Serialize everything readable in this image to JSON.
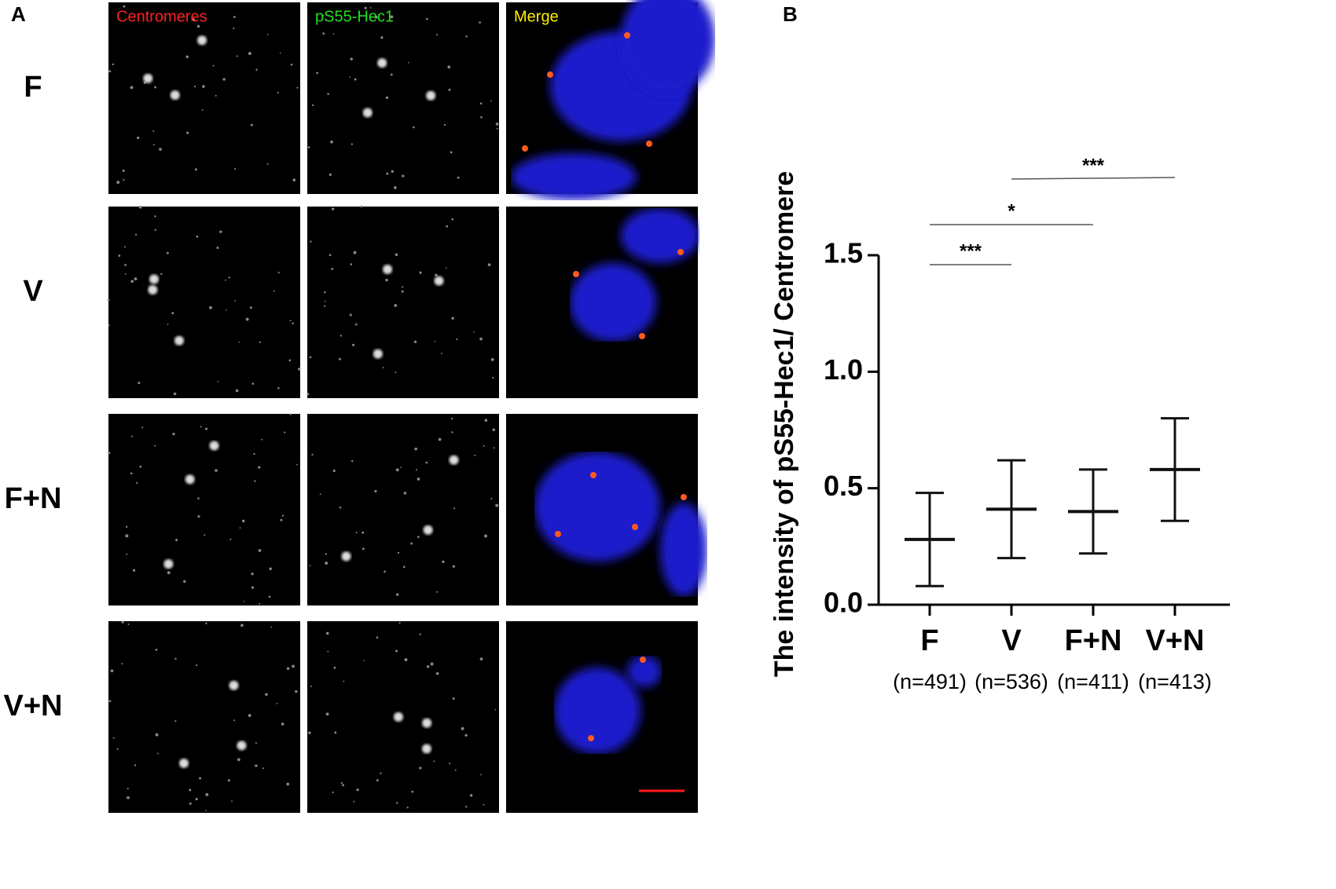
{
  "panel_a": {
    "label": "A",
    "columns": [
      {
        "text": "Centromeres",
        "color": "#ff2020"
      },
      {
        "text": "pS55-Hec1",
        "color": "#22dd22"
      },
      {
        "text": "Merge",
        "color": "#ffee00"
      }
    ],
    "rows": [
      "F",
      "V",
      "F+N",
      "V+N"
    ]
  },
  "chart_data": {
    "type": "mean_sd",
    "panel_label": "B",
    "ylabel": "The intensity of pS55-Hec1/ Centromere",
    "categories": [
      "F",
      "V",
      "F+N",
      "V+N"
    ],
    "n_labels": [
      "(n=491)",
      "(n=536)",
      "(n=411)",
      "(n=413)"
    ],
    "values": [
      0.28,
      0.41,
      0.4,
      0.58
    ],
    "errors": [
      0.2,
      0.21,
      0.18,
      0.22
    ],
    "color": "#111111",
    "ylim": [
      0,
      1.5
    ],
    "yticks": [
      {
        "value": 0,
        "label": "0.0"
      },
      0.5,
      {
        "value": 1,
        "label": "1.0"
      },
      1.5
    ],
    "comparisons": [
      {
        "pair": [
          0,
          1
        ],
        "label": "***"
      },
      {
        "pair": [
          0,
          2
        ],
        "label": "*"
      },
      {
        "pair": [
          1,
          3
        ],
        "label": "***"
      }
    ]
  }
}
